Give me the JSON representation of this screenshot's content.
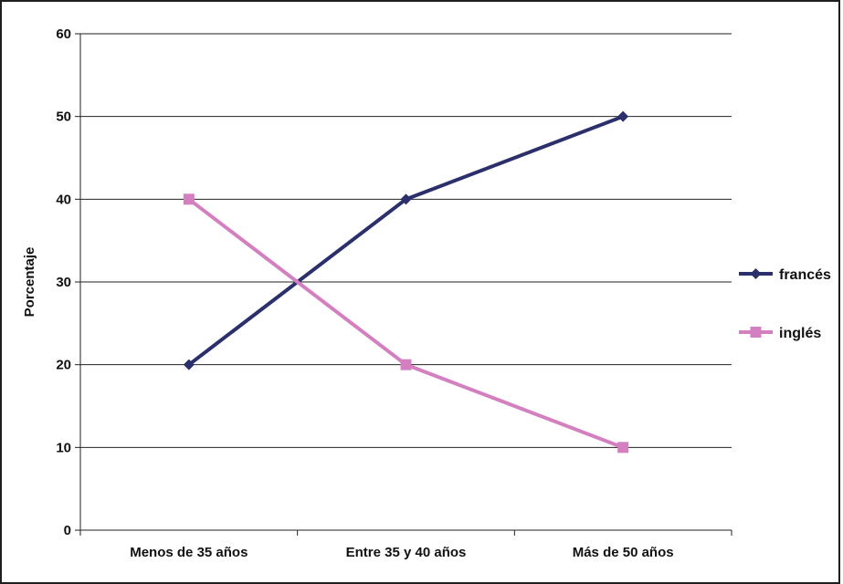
{
  "chart_data": {
    "type": "line",
    "title": "",
    "xlabel": "",
    "ylabel": "Porcentaje",
    "categories": [
      "Menos de 35 años",
      "Entre 35 y 40 años",
      "Más de 50 años"
    ],
    "ylim": [
      0,
      60
    ],
    "yticks": [
      0,
      10,
      20,
      30,
      40,
      50,
      60
    ],
    "grid": true,
    "legend_position": "right",
    "series": [
      {
        "name": "francés",
        "values": [
          20,
          40,
          50
        ],
        "color": "#2b2f6b",
        "marker": "diamond"
      },
      {
        "name": "inglés",
        "values": [
          40,
          20,
          10
        ],
        "color": "#d47fbf",
        "marker": "square"
      }
    ]
  }
}
